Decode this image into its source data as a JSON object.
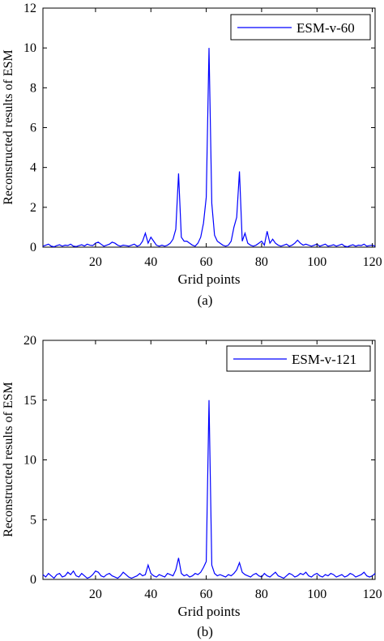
{
  "chart_data": [
    {
      "type": "line",
      "panel_label": "(a)",
      "xlabel": "Grid points",
      "ylabel": "Reconstructed results of ESM",
      "xlim": [
        1,
        121
      ],
      "ylim": [
        0,
        12
      ],
      "xticks": [
        20,
        40,
        60,
        80,
        100,
        120
      ],
      "yticks": [
        0,
        2,
        4,
        6,
        8,
        10,
        12
      ],
      "legend_position": "top-right",
      "series": [
        {
          "name": "ESM-v-60",
          "color": "#0000ff",
          "x": [
            1,
            2,
            3,
            4,
            5,
            6,
            7,
            8,
            9,
            10,
            11,
            12,
            13,
            14,
            15,
            16,
            17,
            18,
            19,
            20,
            21,
            22,
            23,
            24,
            25,
            26,
            27,
            28,
            29,
            30,
            31,
            32,
            33,
            34,
            35,
            36,
            37,
            38,
            39,
            40,
            41,
            42,
            43,
            44,
            45,
            46,
            47,
            48,
            49,
            50,
            51,
            52,
            53,
            54,
            55,
            56,
            57,
            58,
            59,
            60,
            61,
            62,
            63,
            64,
            65,
            66,
            67,
            68,
            69,
            70,
            71,
            72,
            73,
            74,
            75,
            76,
            77,
            78,
            79,
            80,
            81,
            82,
            83,
            84,
            85,
            86,
            87,
            88,
            89,
            90,
            91,
            92,
            93,
            94,
            95,
            96,
            97,
            98,
            99,
            100,
            101,
            102,
            103,
            104,
            105,
            106,
            107,
            108,
            109,
            110,
            111,
            112,
            113,
            114,
            115,
            116,
            117,
            118,
            119,
            120,
            121
          ],
          "values": [
            0.05,
            0.1,
            0.15,
            0.05,
            0.02,
            0.08,
            0.12,
            0.05,
            0.1,
            0.08,
            0.15,
            0.05,
            0.03,
            0.08,
            0.12,
            0.06,
            0.15,
            0.1,
            0.08,
            0.2,
            0.25,
            0.15,
            0.05,
            0.1,
            0.15,
            0.25,
            0.2,
            0.1,
            0.05,
            0.1,
            0.08,
            0.05,
            0.1,
            0.15,
            0.05,
            0.1,
            0.3,
            0.7,
            0.2,
            0.5,
            0.3,
            0.1,
            0.05,
            0.1,
            0.05,
            0.1,
            0.2,
            0.4,
            0.9,
            3.7,
            0.5,
            0.3,
            0.3,
            0.2,
            0.1,
            0.05,
            0.2,
            0.5,
            1.2,
            2.5,
            10,
            2.2,
            0.6,
            0.3,
            0.2,
            0.1,
            0.05,
            0.1,
            0.3,
            1.0,
            1.5,
            3.8,
            0.3,
            0.7,
            0.2,
            0.1,
            0.05,
            0.1,
            0.2,
            0.3,
            0.1,
            0.8,
            0.2,
            0.4,
            0.2,
            0.1,
            0.05,
            0.1,
            0.15,
            0.05,
            0.1,
            0.2,
            0.35,
            0.2,
            0.1,
            0.15,
            0.1,
            0.05,
            0.1,
            0.15,
            0.05,
            0.1,
            0.15,
            0.05,
            0.08,
            0.12,
            0.05,
            0.1,
            0.15,
            0.05,
            0.02,
            0.08,
            0.12,
            0.05,
            0.1,
            0.08,
            0.15,
            0.05,
            0.08,
            0.1,
            0.05
          ]
        }
      ]
    },
    {
      "type": "line",
      "panel_label": "(b)",
      "xlabel": "Grid points",
      "ylabel": "Reconstructed results of ESM",
      "xlim": [
        1,
        121
      ],
      "ylim": [
        0,
        20
      ],
      "xticks": [
        20,
        40,
        60,
        80,
        100,
        120
      ],
      "yticks": [
        0,
        5,
        10,
        15,
        20
      ],
      "legend_position": "top-right",
      "series": [
        {
          "name": "ESM-v-121",
          "color": "#0000ff",
          "x": [
            1,
            2,
            3,
            4,
            5,
            6,
            7,
            8,
            9,
            10,
            11,
            12,
            13,
            14,
            15,
            16,
            17,
            18,
            19,
            20,
            21,
            22,
            23,
            24,
            25,
            26,
            27,
            28,
            29,
            30,
            31,
            32,
            33,
            34,
            35,
            36,
            37,
            38,
            39,
            40,
            41,
            42,
            43,
            44,
            45,
            46,
            47,
            48,
            49,
            50,
            51,
            52,
            53,
            54,
            55,
            56,
            57,
            58,
            59,
            60,
            61,
            62,
            63,
            64,
            65,
            66,
            67,
            68,
            69,
            70,
            71,
            72,
            73,
            74,
            75,
            76,
            77,
            78,
            79,
            80,
            81,
            82,
            83,
            84,
            85,
            86,
            87,
            88,
            89,
            90,
            91,
            92,
            93,
            94,
            95,
            96,
            97,
            98,
            99,
            100,
            101,
            102,
            103,
            104,
            105,
            106,
            107,
            108,
            109,
            110,
            111,
            112,
            113,
            114,
            115,
            116,
            117,
            118,
            119,
            120,
            121
          ],
          "values": [
            0.4,
            0.2,
            0.5,
            0.3,
            0.1,
            0.4,
            0.5,
            0.2,
            0.3,
            0.6,
            0.4,
            0.7,
            0.3,
            0.2,
            0.5,
            0.3,
            0.1,
            0.2,
            0.4,
            0.7,
            0.6,
            0.3,
            0.2,
            0.4,
            0.5,
            0.3,
            0.2,
            0.1,
            0.3,
            0.6,
            0.4,
            0.2,
            0.1,
            0.2,
            0.3,
            0.5,
            0.3,
            0.4,
            1.2,
            0.5,
            0.3,
            0.2,
            0.4,
            0.3,
            0.2,
            0.5,
            0.4,
            0.3,
            0.8,
            1.8,
            0.5,
            0.3,
            0.4,
            0.2,
            0.3,
            0.5,
            0.4,
            0.6,
            1.0,
            1.5,
            15,
            1.2,
            0.5,
            0.3,
            0.4,
            0.3,
            0.2,
            0.4,
            0.3,
            0.5,
            0.8,
            1.4,
            0.6,
            0.4,
            0.3,
            0.2,
            0.4,
            0.5,
            0.3,
            0.2,
            0.5,
            0.3,
            0.2,
            0.4,
            0.6,
            0.3,
            0.2,
            0.1,
            0.3,
            0.5,
            0.4,
            0.2,
            0.3,
            0.5,
            0.4,
            0.6,
            0.3,
            0.2,
            0.4,
            0.5,
            0.3,
            0.2,
            0.4,
            0.3,
            0.5,
            0.4,
            0.2,
            0.3,
            0.4,
            0.2,
            0.3,
            0.5,
            0.4,
            0.2,
            0.3,
            0.4,
            0.6,
            0.3,
            0.2,
            0.3,
            0.5
          ]
        }
      ]
    }
  ]
}
